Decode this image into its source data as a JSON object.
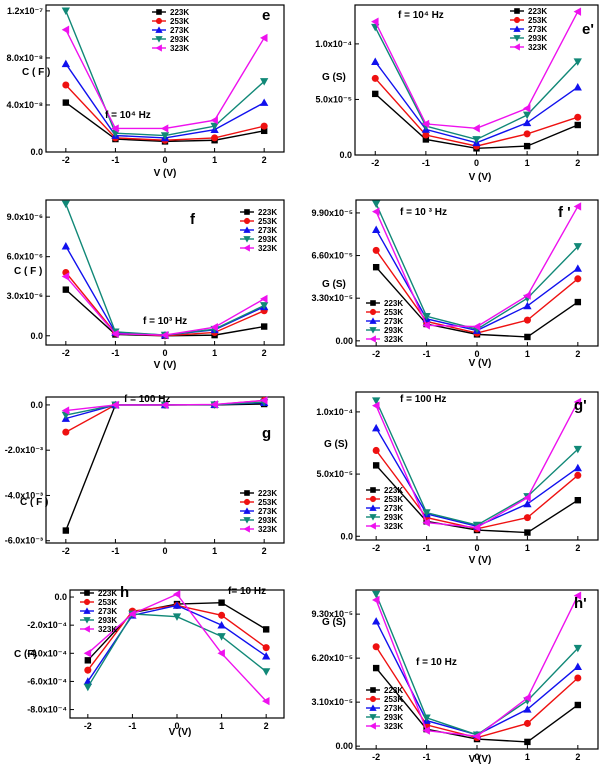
{
  "figure": {
    "series_names": [
      "223K",
      "253K",
      "273K",
      "293K",
      "323K"
    ],
    "series_colors": [
      "#000000",
      "#ee1111",
      "#1111ee",
      "#118877",
      "#ee11ee"
    ],
    "series_markers": [
      "square",
      "circle",
      "triangle-up",
      "triangle-down",
      "triangle-left"
    ]
  },
  "chart_data": [
    {
      "id": "e",
      "panel_label": "e",
      "type": "line",
      "freq_label": "f  =  10⁴ Hz",
      "xlabel": "V (V)",
      "ylabel": "C  ( F )",
      "x": [
        -2,
        -1,
        0,
        1,
        2
      ],
      "xlim": [
        -2.4,
        2.4
      ],
      "ylim": [
        0,
        1.25e-07
      ],
      "xticks": [
        "-2",
        "-1",
        "0",
        "1",
        "2"
      ],
      "yticks": [
        0,
        4e-08,
        8e-08,
        1.2e-07
      ],
      "ytick_labels": [
        "0.0",
        "4.0x10⁻⁸",
        "8.0x10⁻⁸",
        "1.2x10⁻⁷"
      ],
      "series": [
        {
          "name": "223K",
          "values": [
            4.2e-08,
            1.1e-08,
            9e-09,
            1e-08,
            1.8e-08
          ]
        },
        {
          "name": "253K",
          "values": [
            5.7e-08,
            1.2e-08,
            1e-08,
            1.2e-08,
            2.2e-08
          ]
        },
        {
          "name": "273K",
          "values": [
            7.5e-08,
            1.4e-08,
            1.2e-08,
            1.9e-08,
            4.2e-08
          ]
        },
        {
          "name": "293K",
          "values": [
            1.2e-07,
            1.6e-08,
            1.4e-08,
            2.2e-08,
            6e-08
          ]
        },
        {
          "name": "323K",
          "values": [
            1.04e-07,
            2e-08,
            2e-08,
            2.7e-08,
            9.7e-08
          ]
        }
      ]
    },
    {
      "id": "e_prime",
      "panel_label": "e'",
      "type": "line",
      "freq_label": "f  =  10⁴ Hz",
      "xlabel": "V (V)",
      "ylabel": "G (S)",
      "x": [
        -2,
        -1,
        0,
        1,
        2
      ],
      "xlim": [
        -2.4,
        2.4
      ],
      "ylim": [
        0,
        0.000135
      ],
      "xticks": [
        "-2",
        "-1",
        "0",
        "1",
        "2"
      ],
      "yticks": [
        0,
        5e-05,
        0.0001
      ],
      "ytick_labels": [
        "0.0",
        "5.0x10⁻⁵",
        "1.0x10⁻⁴"
      ],
      "series": [
        {
          "name": "223K",
          "values": [
            5.5e-05,
            1.4e-05,
            6e-06,
            8e-06,
            2.7e-05
          ]
        },
        {
          "name": "253K",
          "values": [
            6.9e-05,
            1.8e-05,
            8e-06,
            1.9e-05,
            3.4e-05
          ]
        },
        {
          "name": "273K",
          "values": [
            8.4e-05,
            2.3e-05,
            1.1e-05,
            2.9e-05,
            6.1e-05
          ]
        },
        {
          "name": "293K",
          "values": [
            0.000115,
            2.6e-05,
            1.4e-05,
            3.6e-05,
            8.4e-05
          ]
        },
        {
          "name": "323K",
          "values": [
            0.00012,
            2.8e-05,
            2.4e-05,
            4.2e-05,
            0.000129
          ]
        }
      ]
    },
    {
      "id": "f",
      "panel_label": "f",
      "type": "line",
      "freq_label": "f  =  10³ Hz",
      "xlabel": "V (V)",
      "ylabel": "C  ( F )",
      "x": [
        -2,
        -1,
        0,
        1,
        2
      ],
      "xlim": [
        -2.4,
        2.4
      ],
      "ylim": [
        -7e-07,
        1.03e-05
      ],
      "xticks": [
        "-2",
        "-1",
        "0",
        "1",
        "2"
      ],
      "yticks": [
        0,
        3e-06,
        6e-06,
        9e-06
      ],
      "ytick_labels": [
        "0.0",
        "3.0x10⁻⁶",
        "6.0x10⁻⁶",
        "9.0x10⁻⁶"
      ],
      "series": [
        {
          "name": "223K",
          "values": [
            3.5e-06,
            1e-07,
            0,
            5e-08,
            7e-07
          ]
        },
        {
          "name": "253K",
          "values": [
            4.8e-06,
            2e-07,
            0,
            2.5e-07,
            1.9e-06
          ]
        },
        {
          "name": "273K",
          "values": [
            6.8e-06,
            2.5e-07,
            5e-08,
            4.5e-07,
            2.2e-06
          ]
        },
        {
          "name": "293K",
          "values": [
            1e-05,
            3e-07,
            5e-08,
            5e-07,
            2.3e-06
          ]
        },
        {
          "name": "323K",
          "values": [
            4.5e-06,
            1.5e-07,
            5e-08,
            6.5e-07,
            2.8e-06
          ]
        }
      ]
    },
    {
      "id": "f_prime",
      "panel_label": "f '",
      "type": "line",
      "freq_label": "f  =  10 ³ Hz",
      "xlabel": "V (V)",
      "ylabel": "G (S)",
      "x": [
        -2,
        -1,
        0,
        1,
        2
      ],
      "xlim": [
        -2.4,
        2.4
      ],
      "ylim": [
        -4e-06,
        0.000109
      ],
      "xticks": [
        "-2",
        "-1",
        "0",
        "1",
        "2"
      ],
      "yticks": [
        0,
        3.3e-05,
        6.6e-05,
        9.9e-05
      ],
      "ytick_labels": [
        "0.00",
        "3.30x10⁻⁵",
        "6.60x10⁻⁵",
        "9.90x10⁻⁵"
      ],
      "series": [
        {
          "name": "223K",
          "values": [
            5.7e-05,
            1.3e-05,
            5e-06,
            3e-06,
            3e-05
          ]
        },
        {
          "name": "253K",
          "values": [
            7e-05,
            1.5e-05,
            6e-06,
            1.6e-05,
            4.8e-05
          ]
        },
        {
          "name": "273K",
          "values": [
            8.6e-05,
            1.7e-05,
            8e-06,
            2.7e-05,
            5.6e-05
          ]
        },
        {
          "name": "293K",
          "values": [
            0.000106,
            1.9e-05,
            9e-06,
            3.3e-05,
            7.3e-05
          ]
        },
        {
          "name": "323K",
          "values": [
            0.0001,
            1.2e-05,
            1.1e-05,
            3.5e-05,
            0.000104
          ]
        }
      ]
    },
    {
      "id": "g",
      "panel_label": "g",
      "type": "line",
      "freq_label": "f = 100 Hz",
      "xlabel": "",
      "ylabel": "C  ( F )",
      "x": [
        -2,
        -1,
        0,
        1,
        2
      ],
      "xlim": [
        -2.4,
        2.4
      ],
      "ylim": [
        -0.0061,
        0.00035
      ],
      "xticks": [
        "-2",
        "-1",
        "0",
        "1",
        "2"
      ],
      "yticks": [
        0,
        -0.002,
        -0.004,
        -0.006
      ],
      "ytick_labels": [
        "0.0",
        "-2.0x10⁻³",
        "-4.0x10⁻³",
        "-6.0x10⁻³"
      ],
      "series": [
        {
          "name": "223K",
          "values": [
            -0.00555,
            0,
            0,
            0,
            4e-05
          ]
        },
        {
          "name": "253K",
          "values": [
            -0.0012,
            0,
            0,
            1e-05,
            0.0002
          ]
        },
        {
          "name": "273K",
          "values": [
            -0.0006,
            0,
            0,
            1e-05,
            0.0001
          ]
        },
        {
          "name": "293K",
          "values": [
            -0.00045,
            0,
            0,
            1e-05,
            0.00012
          ]
        },
        {
          "name": "323K",
          "values": [
            -0.00025,
            0,
            0,
            2e-05,
            0.0002
          ]
        }
      ]
    },
    {
      "id": "g_prime",
      "panel_label": "g'",
      "type": "line",
      "freq_label": "f = 100 Hz",
      "xlabel": "V (V)",
      "ylabel": "G (S)",
      "x": [
        -2,
        -1,
        0,
        1,
        2
      ],
      "xlim": [
        -2.4,
        2.4
      ],
      "ylim": [
        -3e-06,
        0.000116
      ],
      "xticks": [
        "-2",
        "-1",
        "0",
        "1",
        "2"
      ],
      "yticks": [
        0,
        5e-05,
        0.0001
      ],
      "ytick_labels": [
        "0.0",
        "5.0x10⁻⁵",
        "1.0x10⁻⁴"
      ],
      "series": [
        {
          "name": "223K",
          "values": [
            5.7e-05,
            1.2e-05,
            5e-06,
            3e-06,
            2.9e-05
          ]
        },
        {
          "name": "253K",
          "values": [
            6.9e-05,
            1.5e-05,
            6e-06,
            1.5e-05,
            4.9e-05
          ]
        },
        {
          "name": "273K",
          "values": [
            8.7e-05,
            1.8e-05,
            8e-06,
            2.6e-05,
            5.5e-05
          ]
        },
        {
          "name": "293K",
          "values": [
            0.000109,
            1.9e-05,
            9e-06,
            3.2e-05,
            7e-05
          ]
        },
        {
          "name": "323K",
          "values": [
            0.000105,
            1.1e-05,
            7e-06,
            3.1e-05,
            0.000108
          ]
        }
      ]
    },
    {
      "id": "h",
      "panel_label": "h",
      "type": "line",
      "freq_label": "f= 10 Hz",
      "xlabel": "V (V)",
      "ylabel": "C (F)",
      "x": [
        -2,
        -1,
        0,
        1,
        2
      ],
      "xlim": [
        -2.4,
        2.4
      ],
      "ylim": [
        -0.00086,
        5e-05
      ],
      "xticks": [
        "-2",
        "-1",
        "0",
        "1",
        "2"
      ],
      "yticks": [
        0,
        -0.0002,
        -0.0004,
        -0.0006,
        -0.0008
      ],
      "ytick_labels": [
        "0.0",
        "-2.0x10⁻⁴",
        "-4.0x10⁻⁴",
        "-6.0x10⁻⁴",
        "-8.0x10⁻⁴"
      ],
      "series": [
        {
          "name": "223K",
          "values": [
            -0.00045,
            -0.00011,
            -5e-05,
            -4e-05,
            -0.00023
          ]
        },
        {
          "name": "253K",
          "values": [
            -0.00052,
            -0.0001,
            -6e-05,
            -0.00013,
            -0.00036
          ]
        },
        {
          "name": "273K",
          "values": [
            -0.0006,
            -0.00013,
            -6e-05,
            -0.0002,
            -0.00042
          ]
        },
        {
          "name": "293K",
          "values": [
            -0.00064,
            -0.00012,
            -0.00014,
            -0.00028,
            -0.00053
          ]
        },
        {
          "name": "323K",
          "values": [
            -0.0004,
            -0.00012,
            2e-05,
            -0.0004,
            -0.00074
          ]
        }
      ]
    },
    {
      "id": "h_prime",
      "panel_label": "h'",
      "type": "line",
      "freq_label": "f  =  10 Hz",
      "xlabel": "V (V)",
      "ylabel": "G (S)",
      "x": [
        -2,
        -1,
        0,
        1,
        2
      ],
      "xlim": [
        -2.4,
        2.4
      ],
      "ylim": [
        -2e-06,
        0.00011
      ],
      "xticks": [
        "-2",
        "-1",
        "0",
        "1",
        "2"
      ],
      "yticks": [
        0,
        3.1e-05,
        6.2e-05,
        9.3e-05
      ],
      "ytick_labels": [
        "0.00",
        "3.10x10⁻⁵",
        "6.20x10⁻⁵",
        "9.30x10⁻⁵"
      ],
      "series": [
        {
          "name": "223K",
          "values": [
            5.5e-05,
            1.2e-05,
            5e-06,
            3e-06,
            2.9e-05
          ]
        },
        {
          "name": "253K",
          "values": [
            7e-05,
            1.5e-05,
            6e-06,
            1.6e-05,
            4.8e-05
          ]
        },
        {
          "name": "273K",
          "values": [
            8.8e-05,
            1.8e-05,
            8e-06,
            2.6e-05,
            5.6e-05
          ]
        },
        {
          "name": "293K",
          "values": [
            0.000107,
            2e-05,
            8e-06,
            3.2e-05,
            6.9e-05
          ]
        },
        {
          "name": "323K",
          "values": [
            0.000103,
            1.1e-05,
            7e-06,
            3.4e-05,
            0.000106
          ]
        }
      ]
    }
  ]
}
